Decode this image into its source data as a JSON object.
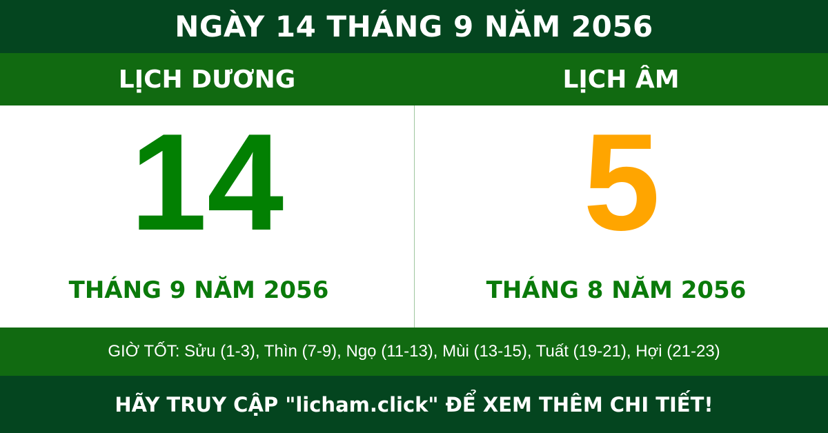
{
  "header": {
    "title": "NGÀY 14 THÁNG 9 NĂM 2056"
  },
  "solar": {
    "label": "LỊCH DƯƠNG",
    "day": "14",
    "month_year": "THÁNG 9 NĂM 2056"
  },
  "lunar": {
    "label": "LỊCH ÂM",
    "day": "5",
    "month_year": "THÁNG 8 NĂM 2056"
  },
  "good_hours": "GIỜ TỐT: Sửu (1-3), Thìn (7-9), Ngọ (11-13), Mùi (13-15), Tuất (19-21), Hợi (21-23)",
  "footer": {
    "cta": "HÃY TRUY CẬP \"licham.click\" ĐỂ XEM THÊM CHI TIẾT!"
  },
  "colors": {
    "dark_green": "#04451f",
    "green": "#116a11",
    "solar_day": "#028002",
    "lunar_day": "#ffa500"
  }
}
